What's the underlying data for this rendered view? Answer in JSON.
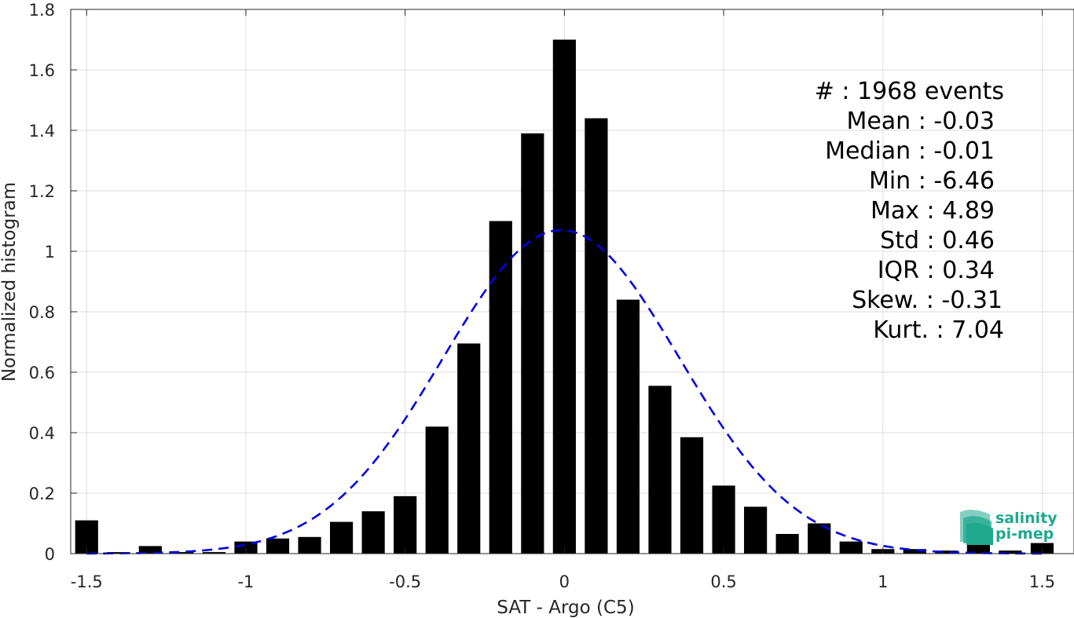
{
  "chart_data": {
    "type": "bar",
    "xlabel": "SAT - Argo (C5)",
    "ylabel": "Normalized histogram",
    "xlim": [
      -1.55,
      1.6
    ],
    "ylim": [
      0,
      1.8
    ],
    "grid": true,
    "x_ticks": [
      -1.5,
      -1,
      -0.5,
      0,
      0.5,
      1,
      1.5
    ],
    "x_tick_labels": [
      "-1.5",
      "-1",
      "-0.5",
      "0",
      "0.5",
      "1",
      "1.5"
    ],
    "y_ticks": [
      0,
      0.2,
      0.4,
      0.6,
      0.8,
      1,
      1.2,
      1.4,
      1.6,
      1.8
    ],
    "y_tick_labels": [
      "0",
      "0.2",
      "0.4",
      "0.6",
      "0.8",
      "1",
      "1.2",
      "1.4",
      "1.6",
      "1.8"
    ],
    "bars": {
      "color": "#000000",
      "x": [
        -1.5,
        -1.4,
        -1.3,
        -1.2,
        -1.1,
        -1.0,
        -0.9,
        -0.8,
        -0.7,
        -0.6,
        -0.5,
        -0.4,
        -0.3,
        -0.2,
        -0.1,
        0.0,
        0.1,
        0.2,
        0.3,
        0.4,
        0.5,
        0.6,
        0.7,
        0.8,
        0.9,
        1.0,
        1.1,
        1.2,
        1.3,
        1.4,
        1.5
      ],
      "values": [
        0.11,
        0.005,
        0.025,
        0.005,
        0.005,
        0.04,
        0.05,
        0.055,
        0.105,
        0.14,
        0.19,
        0.42,
        0.695,
        1.1,
        1.39,
        1.7,
        1.44,
        0.84,
        0.555,
        0.385,
        0.225,
        0.155,
        0.065,
        0.1,
        0.04,
        0.015,
        0.015,
        0.01,
        0.03,
        0.01,
        0.035
      ]
    },
    "fit_curve": {
      "style": "dashed",
      "color": "#0000e6",
      "mean": -0.01,
      "peak": 1.07,
      "sigma": 0.37,
      "x_range": [
        -1.5,
        1.5
      ]
    },
    "stats": [
      "#  : 1968 events",
      "Mean : -0.03",
      "Median : -0.01",
      "Min : -6.46",
      "Max : 4.89",
      "Std : 0.46",
      "IQR : 0.34",
      "Skew. : -0.31",
      "Kurt. : 7.04"
    ]
  },
  "logo": {
    "line1": "salinity",
    "line2": "pi-mep",
    "color": "#1fa88e"
  }
}
